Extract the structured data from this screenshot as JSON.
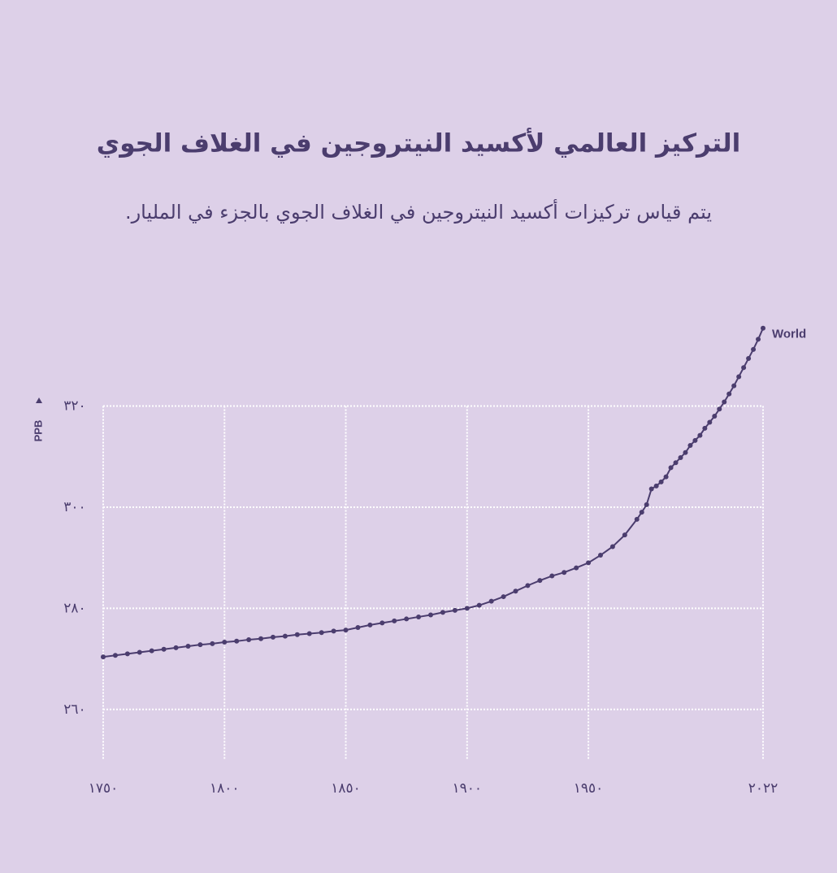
{
  "chart_data": {
    "type": "line",
    "title": "التركيز العالمي لأكسيد النيتروجين في الغلاف الجوي",
    "subtitle": "يتم قياس تركيزات أكسيد النيتروجين في الغلاف الجوي بالجزء في المليار.",
    "y_label": "PPB",
    "x": [
      1750,
      1755,
      1760,
      1765,
      1770,
      1775,
      1780,
      1785,
      1790,
      1795,
      1800,
      1805,
      1810,
      1815,
      1820,
      1825,
      1830,
      1835,
      1840,
      1845,
      1850,
      1855,
      1860,
      1865,
      1870,
      1875,
      1880,
      1885,
      1890,
      1895,
      1900,
      1905,
      1910,
      1915,
      1920,
      1925,
      1930,
      1935,
      1940,
      1945,
      1950,
      1955,
      1960,
      1965,
      1970,
      1972,
      1974,
      1976,
      1978,
      1980,
      1982,
      1984,
      1986,
      1988,
      1990,
      1992,
      1994,
      1996,
      1998,
      2000,
      2002,
      2004,
      2006,
      2008,
      2010,
      2012,
      2014,
      2016,
      2018,
      2020,
      2022
    ],
    "series": [
      {
        "name": "World",
        "color": "#4b3d6e",
        "values": [
          270.4,
          270.7,
          271.0,
          271.3,
          271.6,
          271.9,
          272.2,
          272.5,
          272.8,
          273.0,
          273.3,
          273.5,
          273.8,
          274.0,
          274.3,
          274.5,
          274.8,
          275.0,
          275.2,
          275.5,
          275.7,
          276.2,
          276.7,
          277.1,
          277.5,
          277.9,
          278.3,
          278.7,
          279.2,
          279.6,
          280.0,
          280.6,
          281.4,
          282.3,
          283.4,
          284.5,
          285.5,
          286.4,
          287.1,
          288.0,
          289.0,
          290.5,
          292.2,
          294.5,
          297.6,
          299.0,
          300.5,
          303.6,
          304.2,
          305.0,
          306.0,
          307.8,
          308.8,
          309.8,
          310.8,
          312.2,
          313.2,
          314.2,
          315.6,
          316.8,
          318.0,
          319.4,
          320.8,
          322.4,
          324.0,
          325.8,
          327.6,
          329.4,
          331.2,
          333.2,
          335.4
        ]
      }
    ],
    "xlim": [
      1750,
      2022
    ],
    "xticks": [
      {
        "value": 1750,
        "label": "١٧٥٠"
      },
      {
        "value": 1800,
        "label": "١٨٠٠"
      },
      {
        "value": 1850,
        "label": "١٨٥٠"
      },
      {
        "value": 1900,
        "label": "١٩٠٠"
      },
      {
        "value": 1950,
        "label": "١٩٥٠"
      },
      {
        "value": 2022,
        "label": "٢٠٢٢"
      }
    ],
    "ylim": [
      250,
      336
    ],
    "yticks": [
      {
        "value": 260,
        "label": "٢٦٠"
      },
      {
        "value": 280,
        "label": "٢٨٠"
      },
      {
        "value": 300,
        "label": "٣٠٠"
      },
      {
        "value": 320,
        "label": "٣٢٠"
      }
    ],
    "grid": true
  }
}
